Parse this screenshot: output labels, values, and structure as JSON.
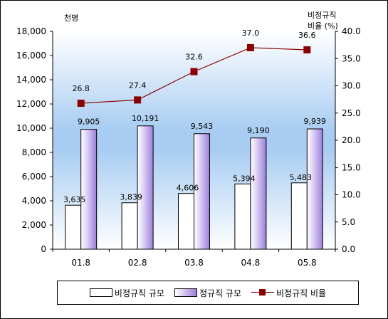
{
  "chart_data": {
    "type": "bar",
    "categories": [
      "01.8",
      "02.8",
      "03.8",
      "04.8",
      "05.8"
    ],
    "left_axis": {
      "unit_label": "천명",
      "ylim": [
        0,
        18000
      ],
      "ticks": [
        "0",
        "2,000",
        "4,000",
        "6,000",
        "8,000",
        "10,000",
        "12,000",
        "14,000",
        "16,000",
        "18,000"
      ],
      "tick_values": [
        0,
        2000,
        4000,
        6000,
        8000,
        10000,
        12000,
        14000,
        16000,
        18000
      ]
    },
    "right_axis": {
      "unit_label_line1": "비정규직",
      "unit_label_line2": "비율 (%)",
      "ylim": [
        0,
        40
      ],
      "ticks": [
        "0.0",
        "5.0",
        "10.0",
        "15.0",
        "20.0",
        "25.0",
        "30.0",
        "35.0",
        "40.0"
      ],
      "tick_values": [
        0,
        5,
        10,
        15,
        20,
        25,
        30,
        35,
        40
      ]
    },
    "series": [
      {
        "name": "비정규직 규모",
        "kind": "bar",
        "axis": "left",
        "values": [
          3635,
          3839,
          4606,
          5394,
          5483
        ],
        "labels": [
          "3,635",
          "3,839",
          "4,606",
          "5,394",
          "5,483"
        ],
        "color": "#ffffff"
      },
      {
        "name": "정규직 규모",
        "kind": "bar",
        "axis": "left",
        "values": [
          9905,
          10191,
          9543,
          9190,
          9939
        ],
        "labels": [
          "9,905",
          "10,191",
          "9,543",
          "9,190",
          "9,939"
        ],
        "color": "#9a7fd9"
      },
      {
        "name": "비정규직 비율",
        "kind": "line",
        "axis": "right",
        "values": [
          26.8,
          27.4,
          32.6,
          37.0,
          36.6
        ],
        "labels": [
          "26.8",
          "27.4",
          "32.6",
          "37.0",
          "36.6"
        ],
        "color": "#8b0000"
      }
    ],
    "grid": false,
    "legend_position": "bottom"
  },
  "legend": {
    "item1": "비정규직 규모",
    "item2": "정규직 규모",
    "item3": "비정규직 비율"
  }
}
